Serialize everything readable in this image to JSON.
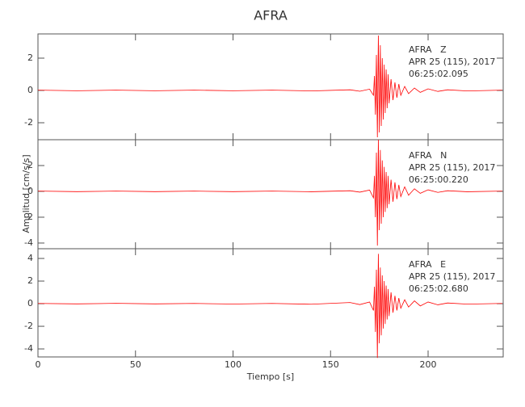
{
  "chart_data": [
    {
      "type": "line",
      "title": "AFRA",
      "annotations": [
        "AFRA   Z",
        "APR 25 (115), 2017",
        "06:25:02.095"
      ],
      "xlim": [
        0,
        238.5
      ],
      "ylim": [
        -3.05,
        3.5
      ],
      "yticks": [
        -2,
        0,
        2
      ],
      "x": [
        0,
        20,
        40,
        60,
        80,
        100,
        120,
        140,
        160,
        165,
        170,
        172,
        172.5,
        173,
        173.5,
        174,
        174.5,
        175,
        175.5,
        176,
        176.5,
        177,
        177.5,
        178,
        178.5,
        179,
        179.5,
        180,
        181,
        182,
        183,
        184,
        185,
        186,
        188,
        190,
        193,
        196,
        200,
        205,
        210,
        220,
        238
      ],
      "series": [
        {
          "color": "#ff0000",
          "values": [
            0.02,
            -0.02,
            0.02,
            -0.02,
            0.02,
            -0.02,
            0.02,
            -0.03,
            0.04,
            -0.05,
            0.08,
            -0.3,
            0.9,
            -1.5,
            2.2,
            -2.9,
            3.4,
            -2.6,
            2.8,
            -2.2,
            2.0,
            -1.8,
            1.6,
            -1.4,
            1.3,
            -1.1,
            1.0,
            -0.8,
            0.7,
            -0.6,
            0.5,
            -0.45,
            0.4,
            -0.3,
            0.25,
            -0.2,
            0.15,
            -0.12,
            0.1,
            -0.06,
            0.04,
            -0.03,
            0.02
          ]
        }
      ]
    },
    {
      "type": "line",
      "ylabel": "Amplitud [cm/s/s]",
      "annotations": [
        "AFRA   N",
        "APR 25 (115), 2017",
        "06:25:00.220"
      ],
      "xlim": [
        0,
        238.5
      ],
      "ylim": [
        -4.44,
        4
      ],
      "yticks": [
        -4,
        -2,
        0,
        2
      ],
      "x": [
        0,
        20,
        40,
        60,
        80,
        100,
        120,
        140,
        160,
        165,
        170,
        172,
        172.5,
        173,
        173.5,
        174,
        174.5,
        175,
        175.5,
        176,
        176.5,
        177,
        177.5,
        178,
        178.5,
        179,
        179.5,
        180,
        181,
        182,
        183,
        184,
        185,
        186,
        188,
        190,
        193,
        196,
        200,
        205,
        210,
        220,
        238
      ],
      "series": [
        {
          "color": "#ff0000",
          "values": [
            0.02,
            -0.02,
            0.02,
            -0.02,
            0.02,
            -0.02,
            0.02,
            -0.03,
            0.05,
            -0.06,
            0.1,
            -0.5,
            1.2,
            -2.0,
            3.0,
            -4.2,
            4.0,
            -3.0,
            3.2,
            -2.5,
            2.4,
            -2.0,
            1.9,
            -1.6,
            1.5,
            -1.3,
            1.2,
            -1.0,
            0.9,
            -0.8,
            0.7,
            -0.6,
            0.5,
            -0.4,
            0.35,
            -0.3,
            0.2,
            -0.15,
            0.12,
            -0.08,
            0.05,
            -0.03,
            0.02
          ]
        }
      ]
    },
    {
      "type": "line",
      "xlabel": "Tiempo [s]",
      "annotations": [
        "AFRA   E",
        "APR 25 (115), 2017",
        "06:25:02.680"
      ],
      "xlim": [
        0,
        238.5
      ],
      "ylim": [
        -4.71,
        4.86
      ],
      "yticks": [
        -4,
        -2,
        0,
        2,
        4
      ],
      "xticks": [
        0,
        50,
        100,
        150,
        200
      ],
      "x": [
        0,
        20,
        40,
        60,
        80,
        100,
        120,
        140,
        160,
        165,
        170,
        172,
        172.5,
        173,
        173.5,
        174,
        174.5,
        175,
        175.5,
        176,
        176.5,
        177,
        177.5,
        178,
        178.5,
        179,
        179.5,
        180,
        181,
        182,
        183,
        184,
        185,
        186,
        188,
        190,
        193,
        196,
        200,
        205,
        210,
        220,
        238
      ],
      "series": [
        {
          "color": "#ff0000",
          "values": [
            0.02,
            -0.02,
            0.03,
            -0.02,
            0.02,
            -0.03,
            0.02,
            -0.05,
            0.1,
            -0.08,
            0.15,
            -0.6,
            1.5,
            -2.5,
            3.0,
            -4.8,
            4.4,
            -3.5,
            3.2,
            -2.8,
            2.5,
            -2.2,
            2.0,
            -1.8,
            1.6,
            -1.4,
            1.3,
            -1.1,
            1.0,
            -0.8,
            0.7,
            -0.6,
            0.5,
            -0.4,
            0.35,
            -0.3,
            0.25,
            -0.2,
            0.15,
            -0.1,
            0.06,
            -0.04,
            0.02
          ]
        }
      ]
    }
  ]
}
